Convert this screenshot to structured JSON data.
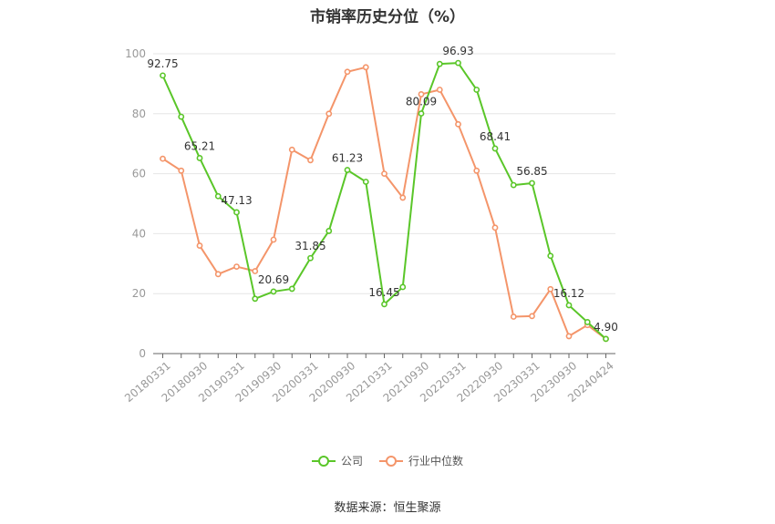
{
  "title": "市销率历史分位（%）",
  "source": "数据来源：恒生聚源",
  "colors": {
    "company": "#5ac629",
    "industry": "#f4956a",
    "grid": "#e6e6e6",
    "axis": "#999999"
  },
  "chart_data": {
    "type": "line",
    "title": "市销率历史分位（%）",
    "ylim": [
      0,
      100
    ],
    "yticks": [
      0,
      20,
      40,
      60,
      80,
      100
    ],
    "grid": true,
    "legend_position": "bottom",
    "x": [
      "20180331",
      "20180630",
      "20180930",
      "20181231",
      "20190331",
      "20190630",
      "20190930",
      "20191231",
      "20200331",
      "20200630",
      "20200930",
      "20201231",
      "20210331",
      "20210630",
      "20210930",
      "20211231",
      "20220331",
      "20220630",
      "20220930",
      "20221231",
      "20230331",
      "20230630",
      "20230930",
      "20231231",
      "20240424"
    ],
    "xtick_labels": [
      "20180331",
      "20180930",
      "20190331",
      "20190930",
      "20200331",
      "20200930",
      "20210331",
      "20210930",
      "20220331",
      "20220930",
      "20230331",
      "20230930",
      "20240424"
    ],
    "series": [
      {
        "name": "公司",
        "values": [
          92.75,
          79.0,
          65.21,
          52.5,
          47.13,
          18.3,
          20.69,
          21.6,
          31.85,
          40.9,
          61.23,
          57.3,
          16.45,
          22.2,
          80.09,
          96.6,
          96.93,
          88.0,
          68.41,
          56.2,
          56.85,
          32.6,
          16.12,
          10.5,
          4.9
        ],
        "labels": {
          "0": "92.75",
          "2": "65.21",
          "4": "47.13",
          "6": "20.69",
          "8": "31.85",
          "10": "61.23",
          "12": "16.45",
          "14": "80.09",
          "16": "96.93",
          "18": "68.41",
          "20": "56.85",
          "22": "16.12",
          "24": "4.90"
        }
      },
      {
        "name": "行业中位数",
        "values": [
          65.0,
          61.0,
          36.0,
          26.5,
          29.0,
          27.5,
          38.0,
          68.0,
          64.5,
          80.0,
          94.0,
          95.5,
          60.0,
          52.0,
          86.5,
          88.0,
          76.5,
          61.0,
          42.0,
          12.3,
          12.5,
          21.5,
          5.8,
          9.5,
          4.9
        ]
      }
    ]
  }
}
